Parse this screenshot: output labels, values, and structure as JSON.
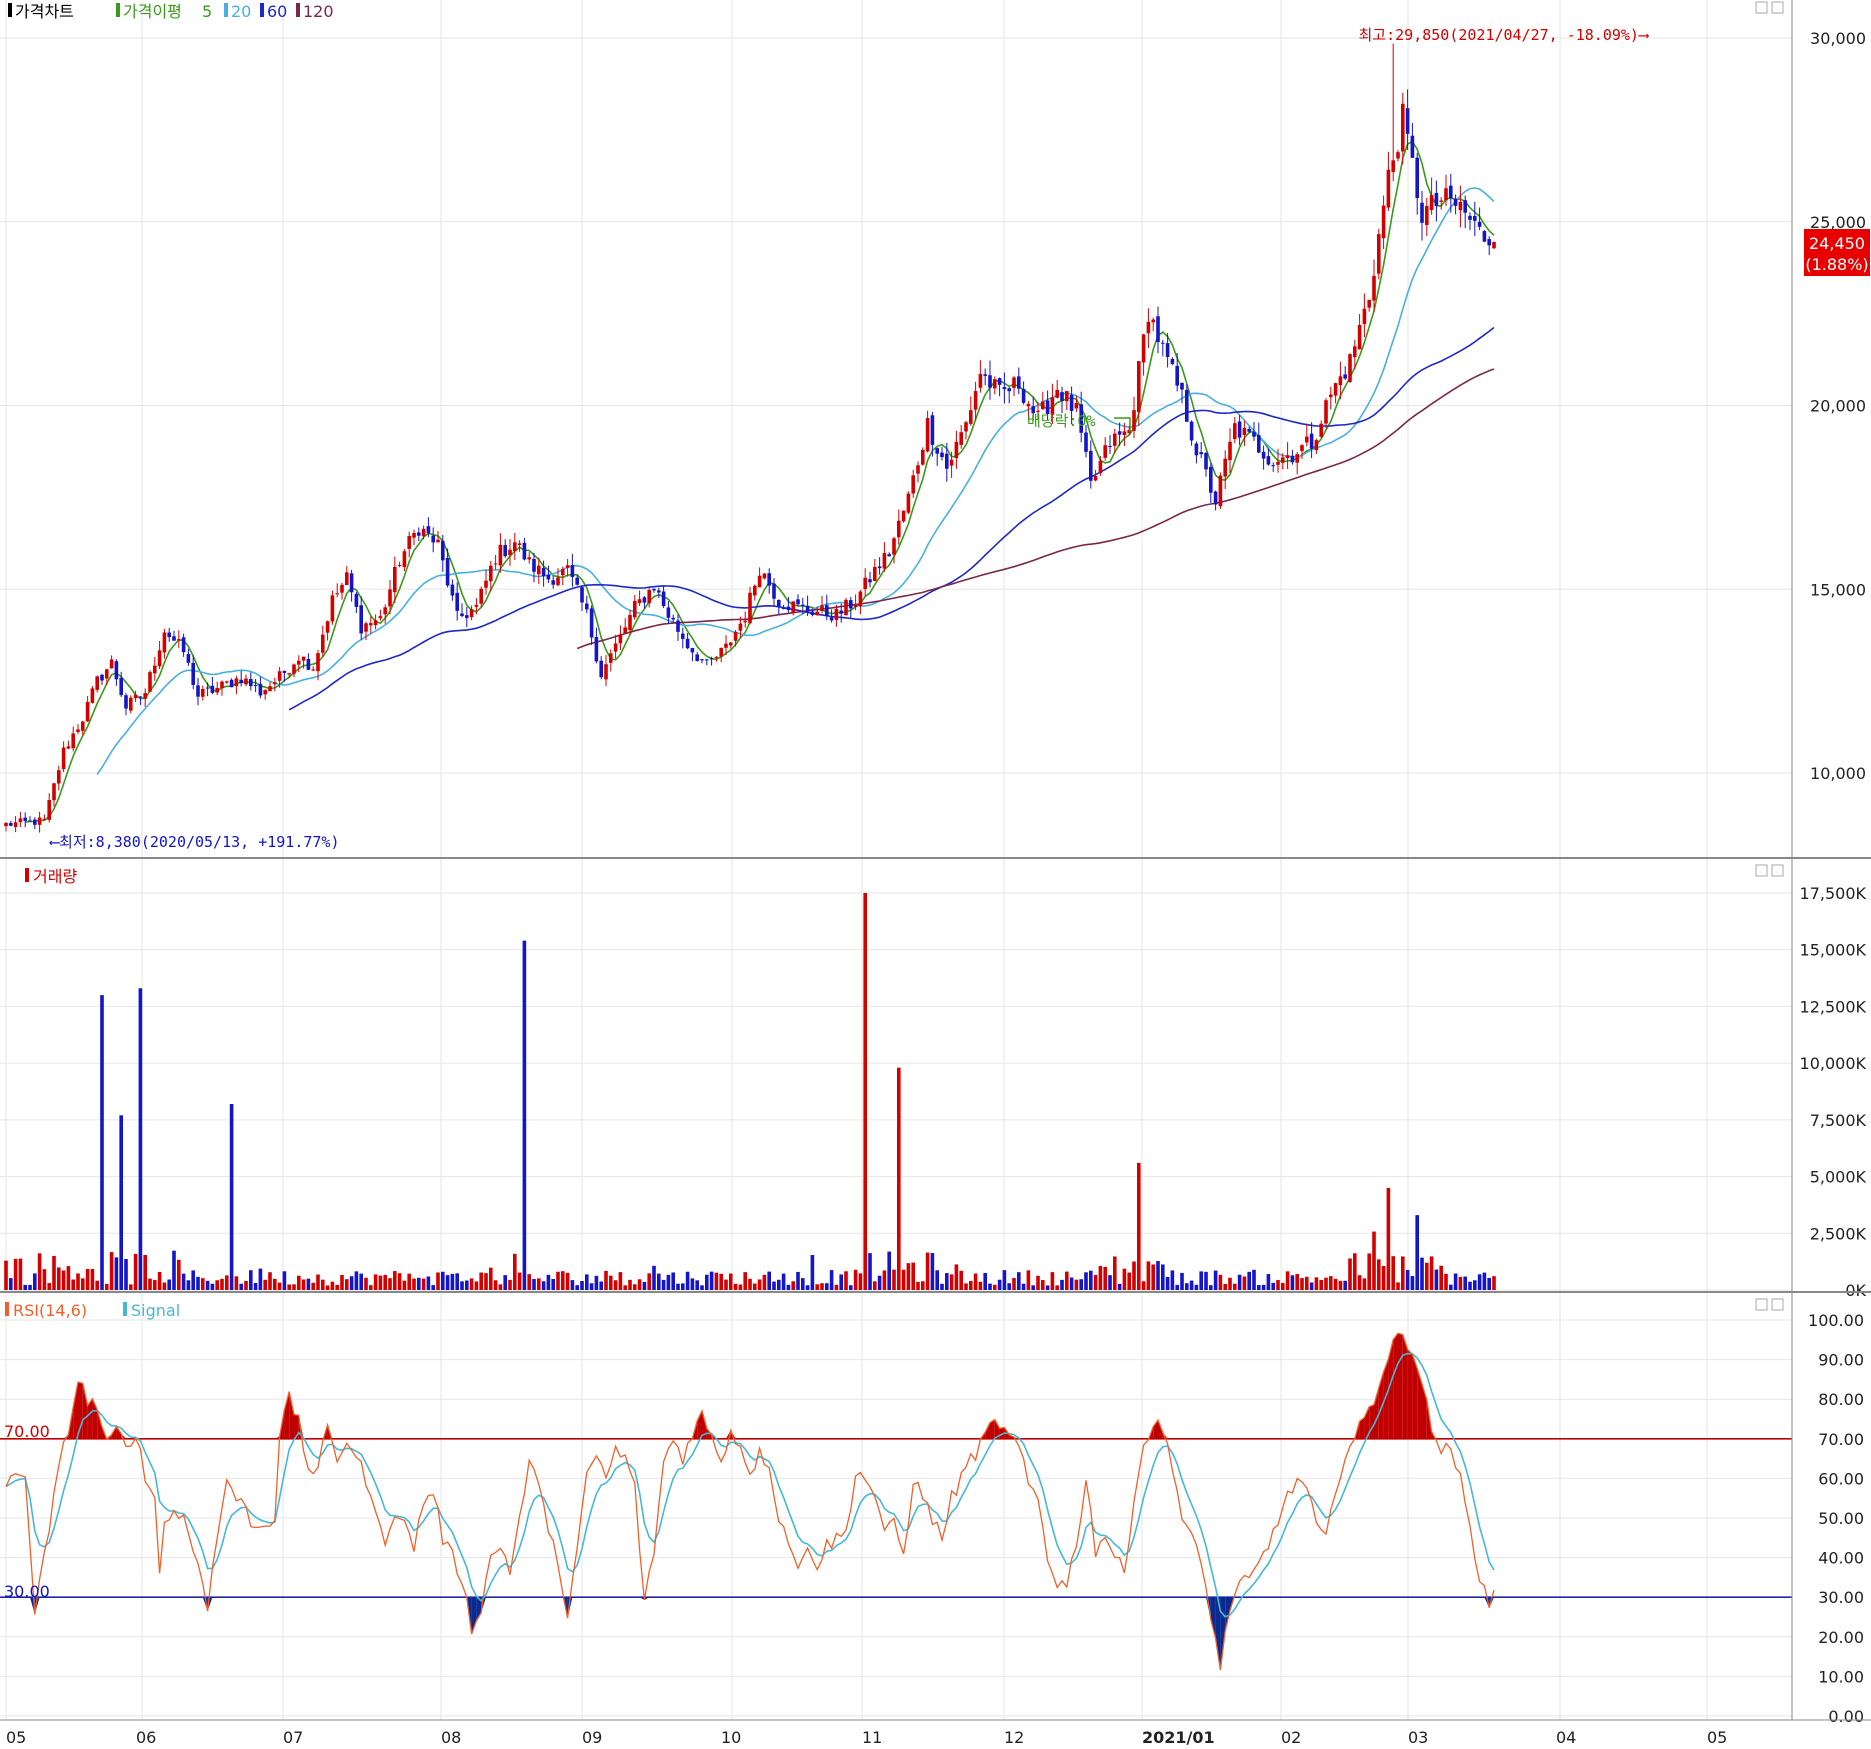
{
  "legend": {
    "price_title": "가격차트",
    "ma_label": "가격이평",
    "ma_periods": [
      "5",
      "20",
      "60",
      "120"
    ],
    "volume_title": "거래량",
    "rsi_label": "RSI(14,6)",
    "signal_label": "Signal"
  },
  "colors": {
    "up": "#d40000",
    "down": "#1414c8",
    "ma5": "#3a9a1a",
    "ma20": "#48b0e0",
    "ma60": "#1e28c8",
    "ma120": "#7a2848",
    "rsi": "#f0602a",
    "signal": "#45b8d8",
    "ob_fill": "#c00000",
    "os_fill": "#0a2a90"
  },
  "annotations": {
    "high": "최고:29,850(2021/04/27, -18.09%)⟶",
    "low": "⟵최저:8,380(2020/05/13, +191.77%)",
    "dividend": "배당락:0%",
    "last_price": "24,450",
    "last_change": "(1.88%)"
  },
  "rsi_levels": {
    "upper": "70.00",
    "lower": "30.00"
  },
  "chart_data": [
    {
      "type": "candlestick",
      "title": "가격차트",
      "x": [
        "05",
        "06",
        "07",
        "08",
        "09",
        "10",
        "11",
        "12",
        "2021/01",
        "02",
        "03",
        "04",
        "05"
      ],
      "ylim": [
        8000,
        30500
      ],
      "y_ticks": [
        "10,000",
        "15,000",
        "20,000",
        "25,000",
        "30,000"
      ],
      "y_tick_values": [
        10000,
        15000,
        20000,
        25000,
        30000
      ],
      "ma_periods": [
        5,
        20,
        60,
        120
      ],
      "high": {
        "value": 29850,
        "date": "2021/04/27"
      },
      "low": {
        "value": 8380,
        "date": "2020/05/13"
      },
      "last": {
        "value": 24450,
        "change_pct": 1.88
      },
      "close_anchors": [
        [
          0,
          8600
        ],
        [
          8,
          8700
        ],
        [
          12,
          10600
        ],
        [
          16,
          11500
        ],
        [
          19,
          12500
        ],
        [
          22,
          13000
        ],
        [
          25,
          11800
        ],
        [
          29,
          12200
        ],
        [
          33,
          13900
        ],
        [
          37,
          13300
        ],
        [
          40,
          12100
        ],
        [
          44,
          12300
        ],
        [
          49,
          12600
        ],
        [
          53,
          12200
        ],
        [
          57,
          12600
        ],
        [
          61,
          13200
        ],
        [
          64,
          12900
        ],
        [
          68,
          14700
        ],
        [
          71,
          15300
        ],
        [
          74,
          14000
        ],
        [
          78,
          14200
        ],
        [
          82,
          15800
        ],
        [
          86,
          16700
        ],
        [
          90,
          16200
        ],
        [
          94,
          14200
        ],
        [
          98,
          14500
        ],
        [
          102,
          15900
        ],
        [
          106,
          16300
        ],
        [
          109,
          15700
        ],
        [
          113,
          15300
        ],
        [
          117,
          15500
        ],
        [
          121,
          14300
        ],
        [
          124,
          12700
        ],
        [
          128,
          13700
        ],
        [
          131,
          14500
        ],
        [
          135,
          15100
        ],
        [
          138,
          14300
        ],
        [
          142,
          13500
        ],
        [
          146,
          12900
        ],
        [
          150,
          13400
        ],
        [
          154,
          14300
        ],
        [
          157,
          15600
        ],
        [
          161,
          14700
        ],
        [
          165,
          14500
        ],
        [
          169,
          14400
        ],
        [
          173,
          14300
        ],
        [
          177,
          14700
        ],
        [
          181,
          15500
        ],
        [
          184,
          16000
        ],
        [
          188,
          17500
        ],
        [
          192,
          19500
        ],
        [
          196,
          18300
        ],
        [
          200,
          19500
        ],
        [
          203,
          20900
        ],
        [
          207,
          20300
        ],
        [
          211,
          20600
        ],
        [
          215,
          19600
        ],
        [
          219,
          20500
        ],
        [
          223,
          19800
        ],
        [
          226,
          17800
        ],
        [
          230,
          19000
        ],
        [
          234,
          19300
        ],
        [
          238,
          22600
        ],
        [
          241,
          21500
        ],
        [
          245,
          20200
        ],
        [
          248,
          18800
        ],
        [
          252,
          17400
        ],
        [
          256,
          19400
        ],
        [
          260,
          19000
        ],
        [
          264,
          18500
        ],
        [
          268,
          18700
        ],
        [
          272,
          19000
        ],
        [
          276,
          20300
        ],
        [
          280,
          21200
        ],
        [
          284,
          23000
        ],
        [
          288,
          26200
        ],
        [
          291,
          27800
        ],
        [
          295,
          25200
        ],
        [
          299,
          25600
        ],
        [
          303,
          25400
        ],
        [
          307,
          24700
        ],
        [
          310,
          24450
        ]
      ],
      "volume_spikes": [
        [
          20,
          13000
        ],
        [
          24,
          7700
        ],
        [
          28,
          13300
        ],
        [
          47,
          8200
        ],
        [
          108,
          15400
        ],
        [
          179,
          17500
        ],
        [
          186,
          9800
        ],
        [
          236,
          5600
        ],
        [
          288,
          4500
        ]
      ]
    },
    {
      "type": "bar",
      "title": "거래량",
      "y_ticks": [
        "0K",
        "2,500K",
        "5,000K",
        "7,500K",
        "10,000K",
        "12,500K",
        "15,000K",
        "17,500K"
      ],
      "y_tick_values": [
        0,
        2500,
        5000,
        7500,
        10000,
        12500,
        15000,
        17500
      ],
      "ylim": [
        0,
        18000
      ],
      "units": "K"
    },
    {
      "type": "line",
      "title": "RSI(14,6)",
      "series": [
        {
          "name": "RSI(14,6)"
        },
        {
          "name": "Signal"
        }
      ],
      "ylim": [
        0,
        100
      ],
      "y_ticks": [
        "0.00",
        "10.00",
        "20.00",
        "30.00",
        "40.00",
        "50.00",
        "60.00",
        "70.00",
        "80.00",
        "90.00",
        "100.00"
      ],
      "y_tick_values": [
        0,
        10,
        20,
        30,
        40,
        50,
        60,
        70,
        80,
        90,
        100
      ],
      "levels": [
        70,
        30
      ],
      "rsi_anchors": [
        [
          0,
          58
        ],
        [
          4,
          62
        ],
        [
          6,
          26
        ],
        [
          8,
          40
        ],
        [
          10,
          55
        ],
        [
          12,
          68
        ],
        [
          14,
          78
        ],
        [
          15,
          85
        ],
        [
          17,
          80
        ],
        [
          19,
          78
        ],
        [
          21,
          68
        ],
        [
          23,
          72
        ],
        [
          25,
          68
        ],
        [
          27,
          72
        ],
        [
          29,
          60
        ],
        [
          31,
          55
        ],
        [
          32,
          38
        ],
        [
          33,
          48
        ],
        [
          35,
          52
        ],
        [
          37,
          50
        ],
        [
          39,
          42
        ],
        [
          41,
          35
        ],
        [
          42,
          28
        ],
        [
          44,
          45
        ],
        [
          46,
          60
        ],
        [
          48,
          55
        ],
        [
          50,
          52
        ],
        [
          52,
          47
        ],
        [
          54,
          49
        ],
        [
          56,
          50
        ],
        [
          57,
          72
        ],
        [
          59,
          80
        ],
        [
          61,
          74
        ],
        [
          63,
          62
        ],
        [
          65,
          63
        ],
        [
          67,
          72
        ],
        [
          69,
          65
        ],
        [
          71,
          70
        ],
        [
          73,
          65
        ],
        [
          75,
          60
        ],
        [
          77,
          50
        ],
        [
          79,
          45
        ],
        [
          81,
          52
        ],
        [
          83,
          48
        ],
        [
          85,
          43
        ],
        [
          87,
          54
        ],
        [
          89,
          57
        ],
        [
          91,
          45
        ],
        [
          93,
          40
        ],
        [
          95,
          35
        ],
        [
          97,
          22
        ],
        [
          99,
          28
        ],
        [
          101,
          40
        ],
        [
          103,
          43
        ],
        [
          105,
          37
        ],
        [
          107,
          50
        ],
        [
          109,
          63
        ],
        [
          111,
          60
        ],
        [
          113,
          45
        ],
        [
          115,
          40
        ],
        [
          117,
          25
        ],
        [
          119,
          42
        ],
        [
          121,
          60
        ],
        [
          123,
          66
        ],
        [
          125,
          60
        ],
        [
          127,
          67
        ],
        [
          129,
          65
        ],
        [
          131,
          58
        ],
        [
          133,
          28
        ],
        [
          135,
          42
        ],
        [
          137,
          64
        ],
        [
          139,
          70
        ],
        [
          141,
          65
        ],
        [
          143,
          72
        ],
        [
          145,
          76
        ],
        [
          147,
          70
        ],
        [
          149,
          65
        ],
        [
          151,
          72
        ],
        [
          153,
          68
        ],
        [
          155,
          62
        ],
        [
          157,
          66
        ],
        [
          159,
          64
        ],
        [
          161,
          50
        ],
        [
          163,
          45
        ],
        [
          165,
          36
        ],
        [
          167,
          44
        ],
        [
          169,
          38
        ],
        [
          171,
          43
        ],
        [
          173,
          45
        ],
        [
          175,
          46
        ],
        [
          177,
          62
        ],
        [
          179,
          60
        ],
        [
          181,
          56
        ],
        [
          183,
          45
        ],
        [
          185,
          50
        ],
        [
          187,
          40
        ],
        [
          189,
          60
        ],
        [
          191,
          55
        ],
        [
          193,
          50
        ],
        [
          195,
          45
        ],
        [
          197,
          55
        ],
        [
          199,
          60
        ],
        [
          201,
          65
        ],
        [
          203,
          68
        ],
        [
          205,
          73
        ],
        [
          207,
          74
        ],
        [
          209,
          70
        ],
        [
          211,
          68
        ],
        [
          213,
          58
        ],
        [
          215,
          55
        ],
        [
          217,
          40
        ],
        [
          219,
          34
        ],
        [
          221,
          33
        ],
        [
          223,
          44
        ],
        [
          225,
          60
        ],
        [
          227,
          42
        ],
        [
          229,
          46
        ],
        [
          231,
          40
        ],
        [
          233,
          36
        ],
        [
          235,
          56
        ],
        [
          237,
          68
        ],
        [
          239,
          74
        ],
        [
          241,
          72
        ],
        [
          243,
          64
        ],
        [
          245,
          50
        ],
        [
          247,
          45
        ],
        [
          249,
          38
        ],
        [
          251,
          26
        ],
        [
          253,
          12
        ],
        [
          255,
          28
        ],
        [
          257,
          33
        ],
        [
          259,
          34
        ],
        [
          261,
          38
        ],
        [
          263,
          43
        ],
        [
          265,
          50
        ],
        [
          267,
          55
        ],
        [
          269,
          60
        ],
        [
          271,
          57
        ],
        [
          273,
          48
        ],
        [
          275,
          44
        ],
        [
          277,
          58
        ],
        [
          279,
          66
        ],
        [
          281,
          70
        ],
        [
          283,
          75
        ],
        [
          285,
          80
        ],
        [
          287,
          88
        ],
        [
          289,
          94
        ],
        [
          291,
          96
        ],
        [
          293,
          93
        ],
        [
          295,
          84
        ],
        [
          297,
          72
        ],
        [
          299,
          68
        ],
        [
          301,
          66
        ],
        [
          303,
          60
        ],
        [
          305,
          50
        ],
        [
          307,
          33
        ],
        [
          309,
          29
        ],
        [
          310,
          31
        ]
      ]
    }
  ],
  "x_month_labels": [
    "05",
    "06",
    "07",
    "08",
    "09",
    "10",
    "11",
    "12",
    "2021/01",
    "02",
    "03",
    "04",
    "05"
  ]
}
